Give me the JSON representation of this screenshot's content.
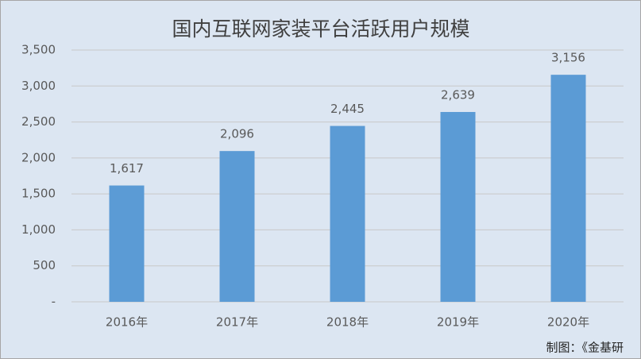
{
  "chart_data": {
    "type": "bar",
    "title": "国内互联网家装平台活跃用户规模",
    "categories": [
      "2016年",
      "2017年",
      "2018年",
      "2019年",
      "2020年"
    ],
    "values": [
      1617,
      2096,
      2445,
      2639,
      3156
    ],
    "value_labels": [
      "1,617",
      "2,096",
      "2,445",
      "2,639",
      "3,156"
    ],
    "color": "#5b9bd5",
    "ylim": [
      0,
      3500
    ],
    "yticks": [
      {
        "value": 0,
        "label": "-"
      },
      500,
      {
        "value": 1000,
        "label": "1,000"
      },
      {
        "value": 1500,
        "label": "1,500"
      },
      {
        "value": 2000,
        "label": "2,000"
      },
      {
        "value": 2500,
        "label": "2,500"
      },
      {
        "value": 3000,
        "label": "3,000"
      },
      {
        "value": 3500,
        "label": "3,500"
      }
    ],
    "grid": true,
    "source": "制图：《金基研"
  }
}
